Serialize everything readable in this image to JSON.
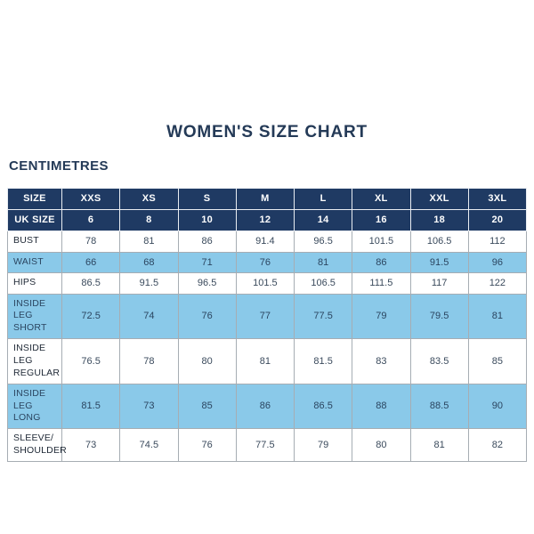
{
  "page": {
    "title": "WOMEN'S SIZE CHART",
    "subtitle": "CENTIMETRES"
  },
  "colors": {
    "header_navy": "#1f3a63",
    "row_light_blue": "#8ac9e9",
    "label_text": "#1d2734",
    "value_text": "#3a4a5c",
    "grid_border": "#a6adb3",
    "header_text": "#ffffff"
  },
  "chart_data": {
    "type": "table",
    "title": "WOMEN'S SIZE CHART",
    "unit_label": "CENTIMETRES",
    "header_rows": [
      {
        "label": "SIZE",
        "values": [
          "XXS",
          "XS",
          "S",
          "M",
          "L",
          "XL",
          "XXL",
          "3XL"
        ]
      },
      {
        "label": "UK SIZE",
        "values": [
          "6",
          "8",
          "10",
          "12",
          "14",
          "16",
          "18",
          "20"
        ]
      }
    ],
    "rows": [
      {
        "label": "BUST",
        "shaded": false,
        "values": [
          "78",
          "81",
          "86",
          "91.4",
          "96.5",
          "101.5",
          "106.5",
          "112"
        ]
      },
      {
        "label": "WAIST",
        "shaded": true,
        "values": [
          "66",
          "68",
          "71",
          "76",
          "81",
          "86",
          "91.5",
          "96"
        ]
      },
      {
        "label": "HIPS",
        "shaded": false,
        "values": [
          "86.5",
          "91.5",
          "96.5",
          "101.5",
          "106.5",
          "111.5",
          "117",
          "122"
        ]
      },
      {
        "label": "INSIDE LEG\nSHORT",
        "shaded": true,
        "values": [
          "72.5",
          "74",
          "76",
          "77",
          "77.5",
          "79",
          "79.5",
          "81"
        ]
      },
      {
        "label": "INSIDE LEG\nREGULAR",
        "shaded": false,
        "values": [
          "76.5",
          "78",
          "80",
          "81",
          "81.5",
          "83",
          "83.5",
          "85"
        ]
      },
      {
        "label": "INSIDE LEG\nLONG",
        "shaded": true,
        "values": [
          "81.5",
          "73",
          "85",
          "86",
          "86.5",
          "88",
          "88.5",
          "90"
        ]
      },
      {
        "label": "SLEEVE/\nSHOULDER",
        "shaded": false,
        "values": [
          "73",
          "74.5",
          "76",
          "77.5",
          "79",
          "80",
          "81",
          "82"
        ]
      }
    ]
  }
}
